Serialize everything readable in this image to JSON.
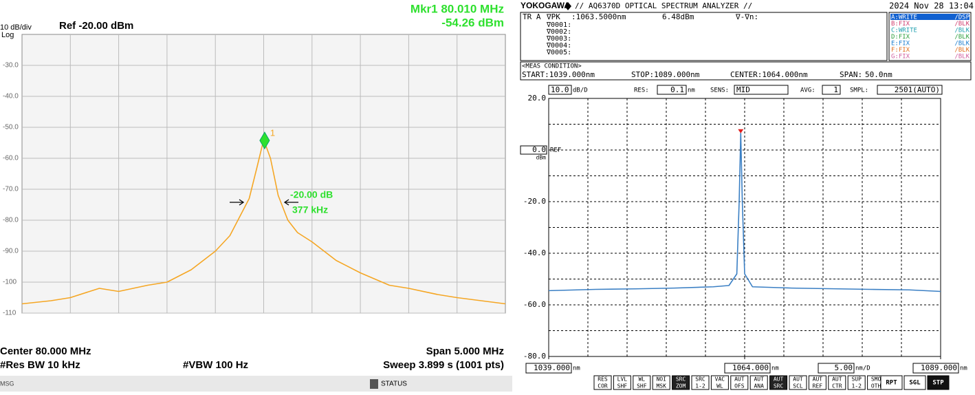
{
  "chart_data": [
    {
      "type": "line",
      "scale_label": "10 dB/div",
      "scale_mode": "Log",
      "ref_label": "Ref -20.00 dBm",
      "marker_readout": [
        "Mkr1 80.010 MHz",
        "-54.26 dBm"
      ],
      "marker": {
        "x": 80.01,
        "y": -54.26,
        "label": "1"
      },
      "bandwidth_labels": [
        "-20.00 dB",
        "377 kHz"
      ],
      "footer": {
        "center": "Center 80.000 MHz",
        "span": "Span 5.000 MHz",
        "rbw": "#Res BW 10 kHz",
        "vbw": "#VBW 100 Hz",
        "sweep": "Sweep  3.899 s (1001 pts)"
      },
      "status_bar": {
        "msg": "MSG",
        "status": "STATUS"
      },
      "xlim": [
        77.5,
        82.5
      ],
      "ylim": [
        -110,
        -20
      ],
      "yticks": [
        {
          "value": -30,
          "label": "-30.0"
        },
        {
          "value": -40,
          "label": "-40.0"
        },
        {
          "value": -50,
          "label": "-50.0"
        },
        {
          "value": -60,
          "label": "-60.0"
        },
        {
          "value": -70,
          "label": "-70.0"
        },
        {
          "value": -80,
          "label": "-80.0"
        },
        {
          "value": -90,
          "label": "-90.0"
        },
        -100,
        -110
      ],
      "grid": true,
      "x": [
        77.5,
        77.8,
        78.0,
        78.3,
        78.5,
        78.8,
        79.0,
        79.25,
        79.5,
        79.65,
        79.75,
        79.85,
        79.93,
        80.0,
        80.07,
        80.15,
        80.25,
        80.35,
        80.5,
        80.75,
        81.0,
        81.3,
        81.5,
        81.8,
        82.0,
        82.5
      ],
      "series": [
        {
          "color": "#f5a623",
          "values": [
            -107,
            -106,
            -105,
            -102,
            -103,
            -101,
            -100,
            -96,
            -90,
            -85,
            -79,
            -73,
            -63,
            -54,
            -60,
            -72,
            -80,
            -84,
            -87,
            -93,
            -97,
            -101,
            -102,
            -104,
            -105,
            -107
          ]
        }
      ]
    },
    {
      "type": "line",
      "header": {
        "brand": "YOKOGAWA",
        "title": "// AQ6370D OPTICAL SPECTRUM ANALYZER //",
        "datetime": "2024 Nov 28 13:04"
      },
      "readout_row": [
        "TR A",
        "∇PK",
        ":1063.5000nm",
        "6.48dBm",
        "∇-∇n:"
      ],
      "readout_markers": [
        "∇0001:",
        "∇0002:",
        "∇0003:",
        "∇0004:",
        "∇0005:"
      ],
      "traces": [
        [
          "A:WRITE",
          "/DSP"
        ],
        [
          "B:FIX",
          "/BLK"
        ],
        [
          "C:WRITE",
          "/BLK"
        ],
        [
          "D:FIX",
          "/BLK"
        ],
        [
          "E:FIX",
          "/BLK"
        ],
        [
          "F:FIX",
          "/BLK"
        ],
        [
          "G:FIX",
          "/BLK"
        ]
      ],
      "meas_condition": {
        "title": "<MEAS CONDITION>",
        "start": "START:1039.000nm",
        "stop": "STOP:1089.000nm",
        "center": "CENTER:1064.000nm",
        "span_label": "SPAN:",
        "span": "50.0nm"
      },
      "settings": {
        "scale": {
          "value": 10,
          "label": "10.0"
        },
        "scale_unit": "dB/D",
        "res_label": "RES:",
        "res": "0.1",
        "res_unit": "nm",
        "sens_label": "SENS:",
        "sens": "MID",
        "avg_label": "AVG:",
        "avg": "1",
        "smpl_label": "SMPL:",
        "smpl": "2501(AUTO)"
      },
      "ref_label": "REF",
      "y_unit": "dBm",
      "x_unit": "nm",
      "x_division": {
        "value": 5,
        "label": "5.00"
      },
      "x_division_unit": "nm/D",
      "xlim": [
        1039,
        1089
      ],
      "xticks": [
        {
          "value": 1039,
          "label": "1039.000"
        },
        {
          "value": 1064,
          "label": "1064.000"
        },
        {
          "value": 1089,
          "label": "1089.000"
        }
      ],
      "ylim": [
        -80,
        20
      ],
      "yticks": [
        {
          "value": 20,
          "label": "20.0"
        },
        {
          "value": 0,
          "label": "0.0"
        },
        {
          "value": -20,
          "label": "-20.0"
        },
        {
          "value": -40,
          "label": "-40.0"
        },
        {
          "value": -60,
          "label": "-60.0"
        },
        {
          "value": -80,
          "label": "-80.0"
        }
      ],
      "grid": true,
      "marker": {
        "x": 1063.5,
        "y": 6.48
      },
      "x": [
        1039,
        1045,
        1050,
        1055,
        1060,
        1062,
        1063,
        1063.3,
        1063.5,
        1063.7,
        1064,
        1065,
        1070,
        1080,
        1085,
        1089
      ],
      "series": [
        {
          "color": "#3a7fc4",
          "values": [
            -54.5,
            -54,
            -53.8,
            -53.5,
            -53,
            -52.5,
            -48,
            -20,
            6.48,
            -20,
            -48,
            -53,
            -53.5,
            -54,
            -54.2,
            -54.8
          ]
        }
      ],
      "buttons": [
        [
          "RES",
          "COR"
        ],
        [
          "LVL",
          "SHF"
        ],
        [
          "WL",
          "SHF"
        ],
        [
          "NOI",
          "MSK"
        ],
        [
          "SRC",
          "ZOM"
        ],
        [
          "SRC",
          "1-2"
        ],
        [
          "VAC",
          "WL"
        ],
        [
          "AUT",
          "OFS"
        ],
        [
          "AUT",
          "ANA"
        ],
        [
          "AUT",
          "SRC"
        ],
        [
          "AUT",
          "SCL"
        ],
        [
          "AUT",
          "REF"
        ],
        [
          "AUT",
          "CTR"
        ],
        [
          "SUP",
          "1-2"
        ],
        [
          "SMO",
          "OTH"
        ]
      ],
      "run_buttons": [
        "RPT",
        "SGL",
        "STP"
      ]
    }
  ]
}
